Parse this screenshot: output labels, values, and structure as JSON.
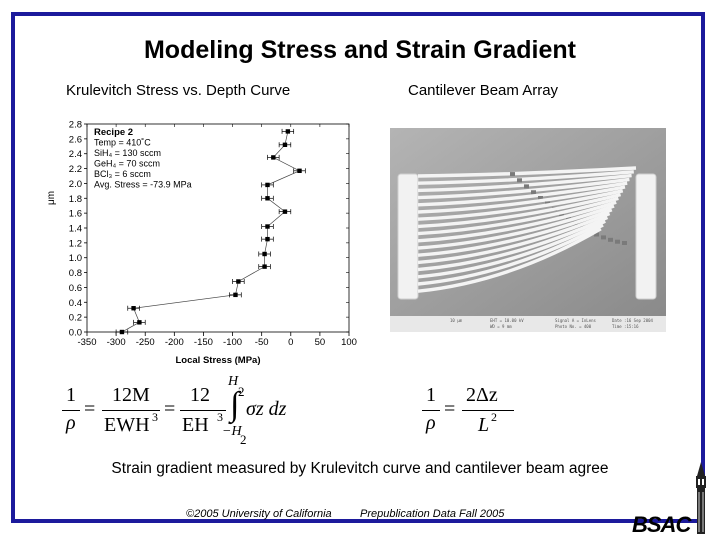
{
  "slide": {
    "title": "Modeling Stress and Strain Gradient",
    "left_subtitle": "Krulevitch Stress vs. Depth Curve",
    "right_subtitle": "Cantilever Beam Array",
    "caption": "Strain gradient measured by Krulevitch curve and cantilever beam agree",
    "footer_left": "©2005 University of California",
    "footer_right": "Prepublication Data Fall 2005",
    "logo_text": "BSAC",
    "frame_color": "#1c1a9c"
  },
  "chart_data": {
    "type": "scatter",
    "title": "",
    "xlabel": "Local Stress (MPa)",
    "ylabel": "μm",
    "xlim": [
      -350,
      100
    ],
    "ylim": [
      0,
      2.8
    ],
    "x_ticks": [
      "-350",
      "-300",
      "-250",
      "-200",
      "-150",
      "-100",
      "-50",
      "0",
      "50",
      "100"
    ],
    "y_ticks": [
      "0.0",
      "0.2",
      "0.4",
      "0.6",
      "0.8",
      "1.0",
      "1.2",
      "1.4",
      "1.6",
      "1.8",
      "2.0",
      "2.2",
      "2.4",
      "2.6",
      "2.8"
    ],
    "annotation_lines": [
      "Recipe 2",
      "Temp = 410˚C",
      "SiH₄ = 130 sccm",
      "GeH₄ = 70 sccm",
      "BCl₃ = 6 sccm",
      "Avg. Stress = -73.9 MPa"
    ],
    "series": [
      {
        "points": [
          {
            "x": -290,
            "y": 0.0
          },
          {
            "x": -260,
            "y": 0.13
          },
          {
            "x": -270,
            "y": 0.32
          },
          {
            "x": -95,
            "y": 0.5
          },
          {
            "x": -90,
            "y": 0.68
          },
          {
            "x": -45,
            "y": 0.88
          },
          {
            "x": -45,
            "y": 1.05
          },
          {
            "x": -40,
            "y": 1.25
          },
          {
            "x": -40,
            "y": 1.42
          },
          {
            "x": -10,
            "y": 1.62
          },
          {
            "x": -40,
            "y": 1.8
          },
          {
            "x": -40,
            "y": 1.98
          },
          {
            "x": 15,
            "y": 2.17
          },
          {
            "x": -30,
            "y": 2.35
          },
          {
            "x": -10,
            "y": 2.52
          },
          {
            "x": -5,
            "y": 2.7
          }
        ],
        "x_error": 10
      }
    ],
    "grid": false
  },
  "left_formula": {
    "one": "1",
    "rho": "ρ",
    "num1": "12M",
    "den1": "EWH",
    "num2": "12",
    "den2": "EH",
    "exp": "3",
    "upper_H": "H",
    "upper_2": "2",
    "integrand": "σz dz",
    "lower": "−H",
    "lower_2": "2"
  },
  "right_formula": {
    "one": "1",
    "rho": "ρ",
    "num": "2Δz",
    "den": "L",
    "exp": "2"
  },
  "photo_strip_text": [
    "10 μm",
    "EHT = 10.00 kV",
    "WD = 9 mm",
    "Signal A = InLens",
    "Photo No. = 400",
    "Date :16 Sep 2004",
    "Time :15:16"
  ]
}
